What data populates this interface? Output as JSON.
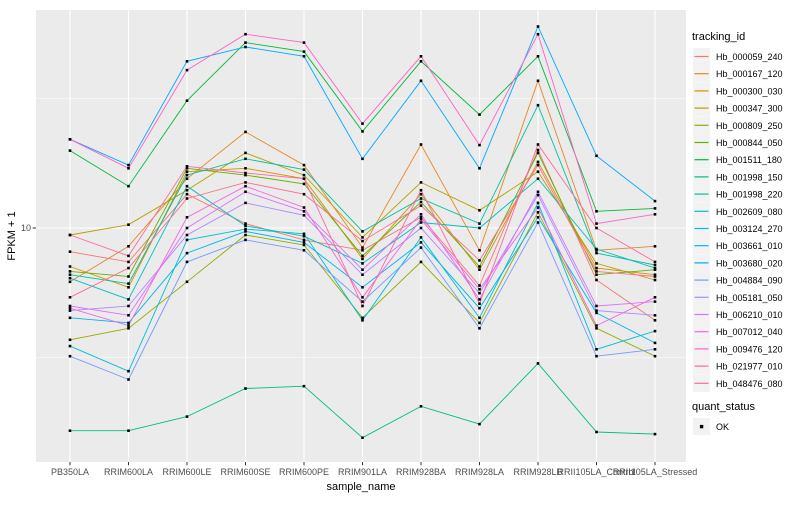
{
  "axes": {
    "x_title": "sample_name",
    "y_title": "FPKM + 1",
    "y_tick": "10"
  },
  "legend": {
    "tracking_title": "tracking_id",
    "quant_title": "quant_status",
    "quant_ok_label": "OK"
  },
  "colors": {
    "panel_bg": "#EBEBEB",
    "grid": "#FFFFFF",
    "point": "#000000",
    "tick": "#333333",
    "legend_key_bg": "#F2F2F2"
  },
  "chart_data": {
    "type": "line",
    "xlabel": "sample_name",
    "ylabel": "FPKM + 1",
    "y_scale": "log10",
    "y_major_breaks": [
      10
    ],
    "y_minor_breaks": [
      3.162,
      31.62
    ],
    "ylim_approx": [
      1.4,
      65
    ],
    "grid": true,
    "legend_position": "right",
    "point_marker": "black-square (quant_status OK)",
    "categories": [
      "PB350LA",
      "RRIM600LA",
      "RRIM600LE",
      "RRIM600SE",
      "RRIM600PE",
      "RRIM901LA",
      "RRIM928BA",
      "RRIM928LA",
      "RRIM928LB",
      "RRII105LA_Control",
      "RRII105LA_Stressed"
    ],
    "series": [
      {
        "name": "Hb_000059_240",
        "color": "#F8766D",
        "values": [
          8.1,
          7.4,
          13.5,
          10.4,
          9.0,
          8.2,
          11.0,
          6.0,
          20.0,
          6.3,
          4.4
        ]
      },
      {
        "name": "Hb_000167_120",
        "color": "#E88526",
        "values": [
          6.2,
          8.5,
          15.5,
          23.5,
          17.5,
          8.4,
          21.0,
          8.2,
          37.0,
          8.2,
          8.5
        ]
      },
      {
        "name": "Hb_000300_030",
        "color": "#D39200",
        "values": [
          7.1,
          5.9,
          16.5,
          17.0,
          15.5,
          7.6,
          13.5,
          6.9,
          18.0,
          7.0,
          6.6
        ]
      },
      {
        "name": "Hb_000347_300",
        "color": "#B79F00",
        "values": [
          9.4,
          10.3,
          14.0,
          19.5,
          16.0,
          9.2,
          15.0,
          11.7,
          16.5,
          7.3,
          6.3
        ]
      },
      {
        "name": "Hb_000809_250",
        "color": "#93AA00",
        "values": [
          3.7,
          4.1,
          6.2,
          9.4,
          8.6,
          4.5,
          7.4,
          4.3,
          11.5,
          4.1,
          3.2
        ]
      },
      {
        "name": "Hb_000844_050",
        "color": "#5EB300",
        "values": [
          6.8,
          6.5,
          17.0,
          16.0,
          14.8,
          7.8,
          12.6,
          7.1,
          19.5,
          6.6,
          6.9
        ]
      },
      {
        "name": "Hb_001511_180",
        "color": "#00BA38",
        "values": [
          19.9,
          14.5,
          31.0,
          52.0,
          48.0,
          23.6,
          44.0,
          27.4,
          46.0,
          11.6,
          11.9
        ]
      },
      {
        "name": "Hb_001998_150",
        "color": "#00BF74",
        "values": [
          1.65,
          1.65,
          1.87,
          2.4,
          2.45,
          1.55,
          2.05,
          1.75,
          3.0,
          1.63,
          1.6
        ]
      },
      {
        "name": "Hb_001998_220",
        "color": "#00C19F",
        "values": [
          6.6,
          6.1,
          16.0,
          18.5,
          16.8,
          9.7,
          13.0,
          10.4,
          29.8,
          8.0,
          7.2
        ]
      },
      {
        "name": "Hb_002609_080",
        "color": "#00BFC4",
        "values": [
          6.4,
          5.3,
          14.5,
          10.2,
          9.3,
          7.3,
          10.5,
          10.0,
          15.5,
          8.3,
          7.0
        ]
      },
      {
        "name": "Hb_003124_270",
        "color": "#00BCD8",
        "values": [
          3.5,
          2.8,
          9.0,
          9.9,
          9.5,
          4.4,
          9.2,
          4.5,
          12.5,
          3.4,
          4.0
        ]
      },
      {
        "name": "Hb_003661_010",
        "color": "#00B4EF",
        "values": [
          4.5,
          4.3,
          8.0,
          9.7,
          8.8,
          5.9,
          8.8,
          4.9,
          11.0,
          4.7,
          3.6
        ]
      },
      {
        "name": "Hb_003680_020",
        "color": "#00A9FF",
        "values": [
          22.0,
          17.5,
          44.0,
          50.0,
          46.0,
          18.5,
          37.0,
          17.0,
          60.0,
          19.0,
          12.7
        ]
      },
      {
        "name": "Hb_004884_090",
        "color": "#7699FF",
        "values": [
          3.2,
          2.6,
          7.4,
          9.0,
          8.2,
          5.2,
          8.4,
          4.1,
          10.5,
          3.2,
          3.4
        ]
      },
      {
        "name": "Hb_005181_050",
        "color": "#AE87FF",
        "values": [
          4.8,
          5.0,
          9.4,
          12.5,
          11.2,
          6.6,
          10.0,
          5.6,
          13.4,
          4.8,
          4.6
        ]
      },
      {
        "name": "Hb_006210_010",
        "color": "#DB72FB",
        "values": [
          5.0,
          4.6,
          10.0,
          13.8,
          11.6,
          6.9,
          11.3,
          5.3,
          13.8,
          5.0,
          5.2
        ]
      },
      {
        "name": "Hb_007012_040",
        "color": "#F564E3",
        "values": [
          4.9,
          4.2,
          11.0,
          14.5,
          12.0,
          5.4,
          10.8,
          5.8,
          12.0,
          4.2,
          5.4
        ]
      },
      {
        "name": "Hb_009476_120",
        "color": "#FF61C8",
        "values": [
          22.0,
          17.0,
          40.7,
          56.0,
          52.0,
          25.3,
          46.0,
          20.9,
          56.0,
          10.4,
          11.3
        ]
      },
      {
        "name": "Hb_021977_010",
        "color": "#FF689E",
        "values": [
          9.4,
          7.8,
          17.3,
          16.3,
          15.5,
          5.0,
          14.0,
          5.1,
          21.0,
          10.0,
          7.4
        ]
      },
      {
        "name": "Hb_048476_080",
        "color": "#FF6C91",
        "values": [
          5.4,
          7.0,
          13.0,
          15.0,
          13.5,
          8.9,
          12.2,
          7.5,
          17.5,
          6.8,
          6.5
        ]
      }
    ]
  }
}
